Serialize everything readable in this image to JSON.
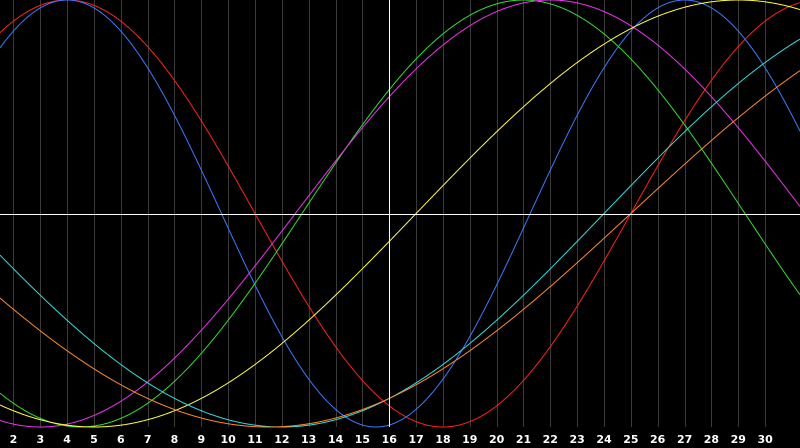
{
  "chart_data": {
    "type": "line",
    "title": "",
    "xlabel": "",
    "ylabel": "",
    "xlim": [
      1.5,
      31.3
    ],
    "ylim": [
      -1,
      1
    ],
    "x_ticks": [
      2,
      3,
      4,
      5,
      6,
      7,
      8,
      9,
      10,
      11,
      12,
      13,
      14,
      15,
      16,
      17,
      18,
      19,
      20,
      21,
      22,
      23,
      24,
      25,
      26,
      27,
      28,
      29,
      30
    ],
    "x_tick_labels": [
      "2",
      "3",
      "4",
      "5",
      "6",
      "7",
      "8",
      "9",
      "10",
      "11",
      "12",
      "13",
      "14",
      "15",
      "16",
      "17",
      "18",
      "19",
      "20",
      "21",
      "22",
      "23",
      "24",
      "25",
      "26",
      "27",
      "28",
      "29",
      "30"
    ],
    "cursor_x": 16,
    "cursor_y": 0,
    "grid": true,
    "background": "#000000",
    "grid_color": "#3a3a3a",
    "cursor_color": "#ffffff",
    "tick_label_color": "#ffffff",
    "series": [
      {
        "color": "#ff2020",
        "period": 28,
        "peak_day": 4
      },
      {
        "color": "#3a7bff",
        "period": 23,
        "peak_day": 4
      },
      {
        "color": "#33dd33",
        "period": 33,
        "peak_day": 21
      },
      {
        "color": "#ee33ee",
        "period": 38,
        "peak_day": 22
      },
      {
        "color": "#ffff44",
        "period": 48,
        "peak_day": 29
      },
      {
        "color": "#33dddd",
        "period": 48,
        "peak_day": 36
      },
      {
        "color": "#ff8a2a",
        "period": 54,
        "peak_day": 38.5
      }
    ]
  }
}
